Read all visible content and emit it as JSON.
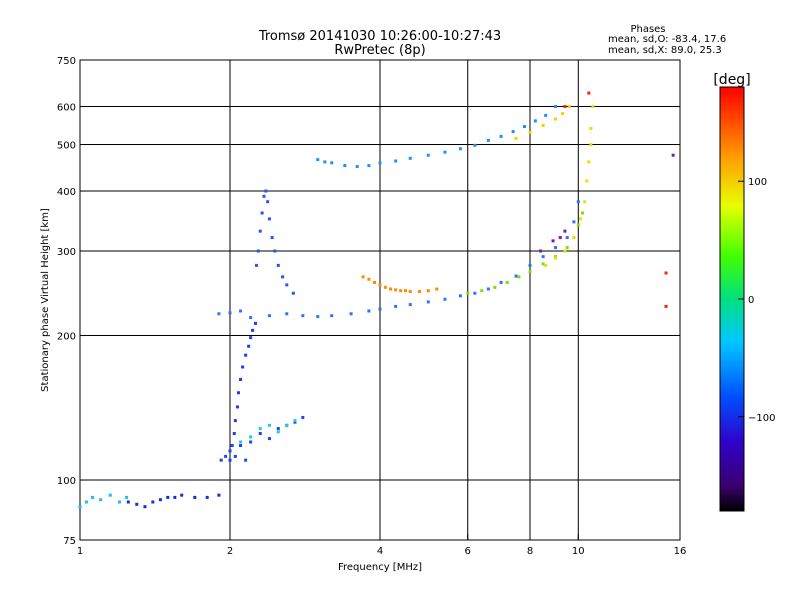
{
  "chart_data": {
    "type": "scatter",
    "title": "Tromsø 20141030 10:26:00-10:27:43",
    "subtitle": "RwPretec (8p)",
    "xlabel": "Frequency [MHz]",
    "ylabel": "Stationary phase Virtual Height [km]",
    "x_scale": "log",
    "y_scale": "log",
    "xlim": [
      1,
      16
    ],
    "ylim": [
      75,
      750
    ],
    "x_ticks": [
      1,
      2,
      4,
      6,
      8,
      10,
      16
    ],
    "y_ticks": [
      75,
      100,
      200,
      300,
      400,
      500,
      600,
      750
    ],
    "x_grid": [
      2,
      4,
      6,
      8,
      10
    ],
    "y_grid": [
      100,
      200,
      300,
      400,
      500,
      600
    ],
    "grid": true,
    "phase_stats": {
      "heading": "Phases",
      "line1": "mean, sd,O: -83.4, 17.6",
      "line2": "mean, sd,X: 89.0, 25.3"
    },
    "colorbar": {
      "label": "[deg]",
      "range": [
        -180,
        180
      ],
      "ticks": [
        100,
        0,
        -100
      ],
      "tick_labels": [
        "100",
        "0",
        "−100"
      ]
    },
    "series": [
      {
        "phase": -100,
        "color": "#1a3cff",
        "x": [
          2.0,
          2.02,
          2.04,
          2.05,
          2.07,
          2.08,
          2.1,
          2.12,
          2.15,
          2.18,
          2.2,
          2.22,
          2.25
        ],
        "y": [
          110,
          118,
          125,
          133,
          142,
          152,
          162,
          172,
          182,
          190,
          198,
          205,
          212
        ]
      },
      {
        "phase": -95,
        "color": "#2255ff",
        "x": [
          2.26,
          2.28,
          2.3,
          2.32,
          2.34,
          2.36,
          2.38,
          2.4,
          2.43,
          2.46,
          2.5,
          2.55,
          2.6,
          2.68
        ],
        "y": [
          280,
          300,
          330,
          360,
          390,
          400,
          380,
          350,
          320,
          300,
          280,
          265,
          255,
          245
        ]
      },
      {
        "phase": -90,
        "color": "#3070ff",
        "x": [
          1.9,
          2.0,
          2.1,
          2.2,
          2.4,
          2.6,
          2.8,
          3.0,
          3.2,
          3.5,
          3.8,
          4.0,
          4.3,
          4.6,
          5.0,
          5.4,
          5.8,
          6.2,
          6.6,
          7.0,
          7.5,
          8.0,
          8.5,
          9.0,
          9.5,
          9.8,
          10.0
        ],
        "y": [
          222,
          223,
          225,
          218,
          220,
          222,
          220,
          219,
          220,
          222,
          225,
          227,
          230,
          232,
          235,
          238,
          242,
          245,
          250,
          258,
          266,
          280,
          292,
          305,
          320,
          345,
          380
        ]
      },
      {
        "phase": -85,
        "color": "#1f8fff",
        "x": [
          3.0,
          3.1,
          3.2,
          3.4,
          3.6,
          3.8,
          4.0,
          4.3,
          4.6,
          5.0,
          5.4,
          5.8,
          6.2,
          6.6,
          7.0,
          7.4,
          7.8,
          8.2,
          8.6,
          9.0
        ],
        "y": [
          465,
          460,
          458,
          452,
          450,
          452,
          458,
          462,
          468,
          475,
          482,
          490,
          498,
          510,
          520,
          532,
          545,
          560,
          575,
          600
        ]
      },
      {
        "phase": -110,
        "color": "#1030d8",
        "x": [
          1.25,
          1.3,
          1.35,
          1.4,
          1.45,
          1.5,
          1.55,
          1.6,
          1.7,
          1.8,
          1.9
        ],
        "y": [
          90,
          89,
          88,
          90,
          91,
          92,
          92,
          93,
          92,
          92,
          93
        ]
      },
      {
        "phase": -70,
        "color": "#20b8ff",
        "x": [
          1.0,
          1.03,
          1.06,
          1.1,
          1.15,
          1.2,
          1.24
        ],
        "y": [
          88,
          90,
          92,
          91,
          93,
          90,
          92
        ]
      },
      {
        "phase": -105,
        "color": "#1848ee",
        "x": [
          1.92,
          1.96,
          2.0,
          2.05,
          2.1,
          2.15,
          2.2,
          2.3,
          2.4,
          2.5,
          2.6,
          2.7,
          2.8
        ],
        "y": [
          110,
          112,
          115,
          112,
          118,
          110,
          120,
          125,
          122,
          128,
          130,
          132,
          135
        ]
      },
      {
        "phase": -65,
        "color": "#22c8e8",
        "x": [
          2.1,
          2.2,
          2.3,
          2.4,
          2.5,
          2.6,
          2.7
        ],
        "y": [
          120,
          123,
          128,
          130,
          126,
          130,
          133
        ]
      },
      {
        "phase": 150,
        "color": "#ff8a00",
        "x": [
          3.7,
          3.8,
          3.9,
          4.0,
          4.1,
          4.2,
          4.3,
          4.4,
          4.5,
          4.6,
          4.8,
          5.0,
          5.2
        ],
        "y": [
          265,
          262,
          258,
          255,
          252,
          250,
          249,
          248,
          248,
          247,
          247,
          248,
          250
        ]
      },
      {
        "phase": 60,
        "color": "#7fe000",
        "x": [
          6.0,
          6.4,
          6.8,
          7.2,
          7.6,
          8.0,
          8.5,
          9.0,
          9.5,
          9.8,
          10.0,
          10.2
        ],
        "y": [
          245,
          248,
          252,
          258,
          265,
          272,
          282,
          292,
          305,
          320,
          340,
          360
        ]
      },
      {
        "phase": 100,
        "color": "#e6e000",
        "x": [
          8.6,
          9.0,
          9.4,
          9.8,
          10.1,
          10.3,
          10.4,
          10.5,
          10.6,
          10.6,
          10.7
        ],
        "y": [
          280,
          290,
          300,
          320,
          350,
          380,
          420,
          460,
          500,
          540,
          600
        ]
      },
      {
        "phase": 120,
        "color": "#f4d000",
        "x": [
          7.5,
          8.0,
          8.5,
          9.0,
          9.3,
          9.6
        ],
        "y": [
          515,
          530,
          548,
          565,
          580,
          600
        ]
      },
      {
        "phase": 175,
        "color": "#ff2000",
        "x": [
          9.4,
          10.5,
          15.0,
          15.0
        ],
        "y": [
          600,
          640,
          230,
          270
        ]
      },
      {
        "phase": -140,
        "color": "#7a18c0",
        "x": [
          8.4,
          8.9,
          9.2,
          9.4,
          15.5
        ],
        "y": [
          300,
          315,
          320,
          330,
          475
        ]
      }
    ]
  }
}
